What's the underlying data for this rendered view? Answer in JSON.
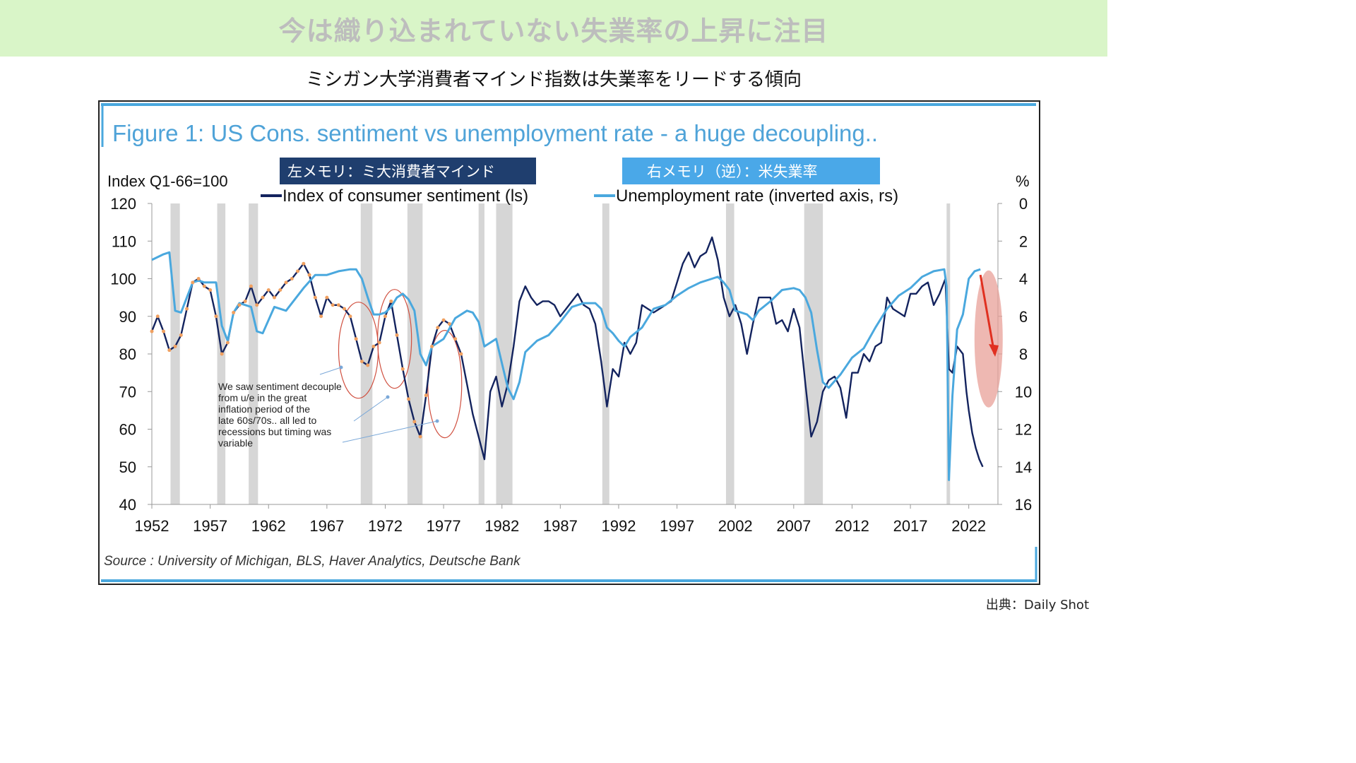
{
  "header": {
    "banner": "今は織り込まれていない失業率の上昇に注目",
    "subtitle": "ミシガン大学消費者マインド指数は失業率をリードする傾向"
  },
  "credit": "出典：Daily Shot",
  "memo": {
    "left": "左メモリ：ミ大消費者マインド",
    "right": "右メモリ（逆）：米失業率"
  },
  "colors": {
    "sentiment": "#13235e",
    "unemployment": "#4aa8de",
    "recession": "#d6d6d6",
    "memo_left_bg": "#1f3e6e",
    "memo_right_bg": "#4aa8e8",
    "highlight": "#e8a098",
    "arrow": "#e03020",
    "markers": "#f0a060",
    "circles": "#d05040"
  },
  "chart_data": {
    "type": "line",
    "title": "Figure 1: US Cons. sentiment vs unemployment rate - a huge decoupling..",
    "source": "Source : University of Michigan, BLS, Haver Analytics, Deutsche Bank",
    "ylabel_left": "Index Q1-66=100",
    "ylabel_right": "%",
    "ylim_left": [
      40,
      120
    ],
    "ylim_right": [
      0,
      16
    ],
    "right_axis_inverted": true,
    "xlim": [
      1952,
      2024.5
    ],
    "x_ticks": [
      1952,
      1957,
      1962,
      1967,
      1972,
      1977,
      1982,
      1987,
      1992,
      1997,
      2002,
      2007,
      2012,
      2017,
      2022
    ],
    "y_ticks_left": [
      40,
      50,
      60,
      70,
      80,
      90,
      100,
      110,
      120
    ],
    "y_ticks_right": [
      0,
      2,
      4,
      6,
      8,
      10,
      12,
      14,
      16
    ],
    "legend_position": "top",
    "grid": false,
    "recessions": [
      [
        1953.6,
        1954.4
      ],
      [
        1957.6,
        1958.3
      ],
      [
        1960.3,
        1961.1
      ],
      [
        1969.9,
        1970.9
      ],
      [
        1973.9,
        1975.2
      ],
      [
        1980.0,
        1980.5
      ],
      [
        1981.5,
        1982.9
      ],
      [
        1990.6,
        1991.2
      ],
      [
        2001.2,
        2001.9
      ],
      [
        2007.9,
        2009.5
      ],
      [
        2020.1,
        2020.4
      ]
    ],
    "series": [
      {
        "name": "Index of consumer sentiment (ls)",
        "axis": "left",
        "x": [
          1952.0,
          1952.5,
          1953.0,
          1953.5,
          1954.0,
          1954.5,
          1955.0,
          1955.5,
          1956.0,
          1956.5,
          1957.0,
          1957.5,
          1958.0,
          1958.5,
          1959.0,
          1959.5,
          1960.0,
          1960.5,
          1961.0,
          1961.5,
          1962.0,
          1962.5,
          1963.0,
          1963.5,
          1964.0,
          1964.5,
          1965.0,
          1965.5,
          1966.0,
          1966.5,
          1967.0,
          1967.5,
          1968.0,
          1968.5,
          1969.0,
          1969.5,
          1970.0,
          1970.5,
          1971.0,
          1971.5,
          1972.0,
          1972.5,
          1973.0,
          1973.5,
          1974.0,
          1974.5,
          1975.0,
          1975.5,
          1976.0,
          1976.5,
          1977.0,
          1977.5,
          1978.0,
          1978.5,
          1979.0,
          1979.5,
          1980.0,
          1980.5,
          1981.0,
          1981.5,
          1982.0,
          1982.5,
          1983.0,
          1983.5,
          1984.0,
          1984.5,
          1985.0,
          1985.5,
          1986.0,
          1986.5,
          1987.0,
          1987.5,
          1988.0,
          1988.5,
          1989.0,
          1989.5,
          1990.0,
          1990.5,
          1991.0,
          1991.5,
          1992.0,
          1992.5,
          1993.0,
          1993.5,
          1994.0,
          1994.5,
          1995.0,
          1995.5,
          1996.0,
          1996.5,
          1997.0,
          1997.5,
          1998.0,
          1998.5,
          1999.0,
          1999.5,
          2000.0,
          2000.5,
          2001.0,
          2001.5,
          2002.0,
          2002.5,
          2003.0,
          2003.5,
          2004.0,
          2004.5,
          2005.0,
          2005.5,
          2006.0,
          2006.5,
          2007.0,
          2007.5,
          2008.0,
          2008.5,
          2009.0,
          2009.5,
          2010.0,
          2010.5,
          2011.0,
          2011.5,
          2012.0,
          2012.5,
          2013.0,
          2013.5,
          2014.0,
          2014.5,
          2015.0,
          2015.5,
          2016.0,
          2016.5,
          2017.0,
          2017.5,
          2018.0,
          2018.5,
          2019.0,
          2019.5,
          2020.0,
          2020.3,
          2020.6,
          2021.0,
          2021.5,
          2021.8,
          2022.0,
          2022.3,
          2022.6,
          2022.9,
          2023.2
        ],
        "values": [
          86,
          90,
          86,
          81,
          82,
          85,
          92,
          99,
          100,
          98,
          97,
          90,
          80,
          83,
          91,
          93,
          94,
          98,
          93,
          95,
          97,
          95,
          97,
          99,
          100,
          102,
          104,
          101,
          95,
          90,
          95,
          93,
          93,
          92,
          90,
          84,
          78,
          77,
          82,
          83,
          90,
          94,
          85,
          76,
          68,
          62,
          58,
          69,
          82,
          87,
          89,
          88,
          84,
          80,
          72,
          64,
          58,
          52,
          70,
          74,
          66,
          72,
          82,
          94,
          98,
          95,
          93,
          94,
          94,
          93,
          90,
          92,
          94,
          96,
          93,
          92,
          88,
          78,
          66,
          76,
          74,
          83,
          80,
          83,
          93,
          92,
          91,
          92,
          93,
          94,
          99,
          104,
          107,
          103,
          106,
          107,
          111,
          105,
          95,
          90,
          93,
          88,
          80,
          88,
          95,
          95,
          95,
          88,
          89,
          86,
          92,
          87,
          72,
          58,
          62,
          70,
          73,
          74,
          71,
          63,
          75,
          75,
          80,
          78,
          82,
          83,
          95,
          92,
          91,
          90,
          96,
          96,
          98,
          99,
          93,
          96,
          100,
          76,
          75,
          82,
          80,
          70,
          65,
          59,
          55,
          52,
          50
        ]
      },
      {
        "name": "Unemployment rate (inverted axis, rs)",
        "axis": "right",
        "x": [
          1952.0,
          1953.0,
          1953.5,
          1954.0,
          1954.5,
          1955.5,
          1956.0,
          1956.5,
          1957.5,
          1958.0,
          1958.5,
          1959.0,
          1959.5,
          1960.5,
          1961.0,
          1961.5,
          1962.5,
          1963.5,
          1965.0,
          1966.0,
          1967.0,
          1968.0,
          1969.0,
          1969.5,
          1970.0,
          1970.5,
          1971.0,
          1971.5,
          1972.0,
          1972.5,
          1973.0,
          1973.5,
          1974.0,
          1974.5,
          1975.0,
          1975.5,
          1976.0,
          1977.0,
          1978.0,
          1979.0,
          1979.5,
          1980.0,
          1980.5,
          1981.0,
          1981.5,
          1982.0,
          1982.5,
          1983.0,
          1983.5,
          1984.0,
          1985.0,
          1986.0,
          1987.0,
          1988.0,
          1989.0,
          1990.0,
          1990.5,
          1991.0,
          1991.5,
          1992.0,
          1992.5,
          1993.0,
          1994.0,
          1995.0,
          1996.0,
          1997.0,
          1998.0,
          1999.0,
          2000.0,
          2000.5,
          2001.0,
          2001.5,
          2002.0,
          2002.5,
          2003.0,
          2003.5,
          2004.0,
          2005.0,
          2006.0,
          2007.0,
          2007.5,
          2008.0,
          2008.5,
          2009.0,
          2009.5,
          2010.0,
          2011.0,
          2012.0,
          2013.0,
          2014.0,
          2015.0,
          2016.0,
          2017.0,
          2018.0,
          2019.0,
          2019.9,
          2020.1,
          2020.3,
          2020.6,
          2021.0,
          2021.5,
          2022.0,
          2022.5,
          2023.0
        ],
        "values": [
          3.0,
          2.7,
          2.6,
          5.7,
          5.8,
          4.2,
          4.1,
          4.2,
          4.2,
          6.5,
          7.3,
          5.8,
          5.3,
          5.5,
          6.8,
          6.9,
          5.5,
          5.7,
          4.5,
          3.8,
          3.8,
          3.6,
          3.5,
          3.5,
          4.0,
          5.0,
          5.9,
          5.9,
          5.8,
          5.5,
          5.0,
          4.8,
          5.1,
          5.7,
          8.0,
          8.6,
          7.6,
          7.2,
          6.1,
          5.7,
          5.8,
          6.3,
          7.6,
          7.4,
          7.2,
          8.5,
          9.8,
          10.4,
          9.5,
          7.9,
          7.3,
          7.0,
          6.3,
          5.5,
          5.3,
          5.3,
          5.6,
          6.6,
          6.9,
          7.3,
          7.6,
          7.1,
          6.6,
          5.6,
          5.4,
          4.9,
          4.5,
          4.2,
          4.0,
          3.9,
          4.2,
          4.6,
          5.7,
          5.8,
          5.9,
          6.2,
          5.7,
          5.2,
          4.6,
          4.5,
          4.6,
          5.0,
          5.8,
          7.8,
          9.5,
          9.8,
          9.1,
          8.2,
          7.7,
          6.6,
          5.6,
          4.9,
          4.5,
          3.9,
          3.6,
          3.5,
          4.4,
          14.7,
          10.2,
          6.7,
          5.9,
          4.0,
          3.6,
          3.5
        ]
      }
    ],
    "annotation": "We saw sentiment decouple from u/e in the great inflation period of the late 60s/70s.. all led to recessions but timing was variable"
  }
}
